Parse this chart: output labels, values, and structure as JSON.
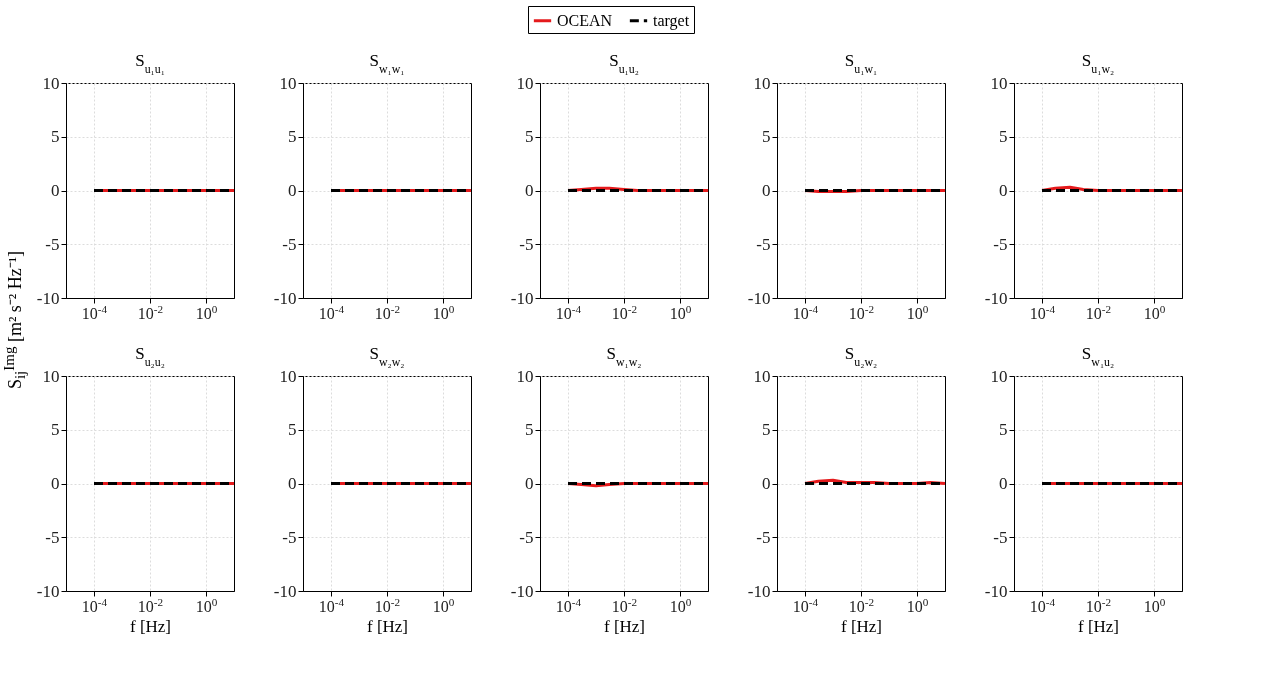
{
  "chart_data": [
    {
      "type": "line",
      "title": "S$_{u₁u₁}$",
      "ylabel": "S$_{ij}$$^{Img}$ [m² s⁻² Hz⁻¹]",
      "legend": "top",
      "log": "x",
      "grid": true,
      "xlim": [
        1e-05,
        10
      ],
      "ylim": [
        -10,
        10
      ],
      "xticks": [
        {
          "value": 0.0001,
          "label": "10$^{-4}$"
        },
        {
          "value": 0.01,
          "label": "10$^{-2}$"
        },
        {
          "value": 1,
          "label": "10$^{0}$"
        }
      ],
      "yticks": [
        -10,
        -5,
        0,
        5,
        10
      ],
      "x": [
        0.0001,
        0.0003,
        0.001,
        0.003,
        0.01,
        0.03,
        0.1,
        0.3,
        1,
        3,
        10
      ],
      "series": [
        {
          "name": "OCEAN",
          "color": "#e41a1c",
          "line_style": "solid",
          "values": [
            0,
            0,
            0,
            0,
            0,
            0,
            0,
            0,
            0,
            0,
            0
          ]
        },
        {
          "name": "target",
          "color": "#000000",
          "line_style": "dashed",
          "values": [
            0,
            0,
            0,
            0,
            0,
            0,
            0,
            0,
            0,
            0,
            0
          ]
        }
      ]
    },
    {
      "type": "line",
      "title": "S$_{w₁w₁}$",
      "log": "x",
      "grid": true,
      "xlim": [
        1e-05,
        10
      ],
      "ylim": [
        -10,
        10
      ],
      "xticks": [
        {
          "value": 0.0001,
          "label": "10$^{-4}$"
        },
        {
          "value": 0.01,
          "label": "10$^{-2}$"
        },
        {
          "value": 1,
          "label": "10$^{0}$"
        }
      ],
      "yticks": [
        -10,
        -5,
        0,
        5,
        10
      ],
      "x": [
        0.0001,
        0.0003,
        0.001,
        0.003,
        0.01,
        0.03,
        0.1,
        0.3,
        1,
        3,
        10
      ],
      "series": [
        {
          "name": "OCEAN",
          "color": "#e41a1c",
          "line_style": "solid",
          "values": [
            0,
            0,
            0,
            0,
            0,
            0,
            0,
            0,
            0,
            0,
            0
          ]
        },
        {
          "name": "target",
          "color": "#000000",
          "line_style": "dashed",
          "values": [
            0,
            0,
            0,
            0,
            0,
            0,
            0,
            0,
            0,
            0,
            0
          ]
        }
      ]
    },
    {
      "type": "line",
      "title": "S$_{u₁u₂}$",
      "log": "x",
      "grid": true,
      "xlim": [
        1e-05,
        10
      ],
      "ylim": [
        -10,
        10
      ],
      "xticks": [
        {
          "value": 0.0001,
          "label": "10$^{-4}$"
        },
        {
          "value": 0.01,
          "label": "10$^{-2}$"
        },
        {
          "value": 1,
          "label": "10$^{0}$"
        }
      ],
      "yticks": [
        -10,
        -5,
        0,
        5,
        10
      ],
      "x": [
        0.0001,
        0.0003,
        0.001,
        0.003,
        0.01,
        0.03,
        0.1,
        0.3,
        1,
        3,
        10
      ],
      "series": [
        {
          "name": "OCEAN",
          "color": "#e41a1c",
          "line_style": "solid",
          "values": [
            0,
            0.1,
            0.2,
            0.2,
            0.1,
            0,
            0,
            0,
            0,
            0,
            0
          ]
        },
        {
          "name": "target",
          "color": "#000000",
          "line_style": "dashed",
          "values": [
            0,
            0,
            0,
            0,
            0,
            0,
            0,
            0,
            0,
            0,
            0
          ]
        }
      ]
    },
    {
      "type": "line",
      "title": "S$_{u₁w₁}$",
      "log": "x",
      "grid": true,
      "xlim": [
        1e-05,
        10
      ],
      "ylim": [
        -10,
        10
      ],
      "xticks": [
        {
          "value": 0.0001,
          "label": "10$^{-4}$"
        },
        {
          "value": 0.01,
          "label": "10$^{-2}$"
        },
        {
          "value": 1,
          "label": "10$^{0}$"
        }
      ],
      "yticks": [
        -10,
        -5,
        0,
        5,
        10
      ],
      "x": [
        0.0001,
        0.0003,
        0.001,
        0.003,
        0.01,
        0.03,
        0.1,
        0.3,
        1,
        3,
        10
      ],
      "series": [
        {
          "name": "OCEAN",
          "color": "#e41a1c",
          "line_style": "solid",
          "values": [
            0,
            -0.1,
            -0.1,
            -0.1,
            0,
            0,
            0,
            0,
            0,
            0,
            0
          ]
        },
        {
          "name": "target",
          "color": "#000000",
          "line_style": "dashed",
          "values": [
            0,
            0,
            0,
            0,
            0,
            0,
            0,
            0,
            0,
            0,
            0
          ]
        }
      ]
    },
    {
      "type": "line",
      "title": "S$_{u₁w₂}$",
      "log": "x",
      "grid": true,
      "xlim": [
        1e-05,
        10
      ],
      "ylim": [
        -10,
        10
      ],
      "xticks": [
        {
          "value": 0.0001,
          "label": "10$^{-4}$"
        },
        {
          "value": 0.01,
          "label": "10$^{-2}$"
        },
        {
          "value": 1,
          "label": "10$^{0}$"
        }
      ],
      "yticks": [
        -10,
        -5,
        0,
        5,
        10
      ],
      "x": [
        0.0001,
        0.0003,
        0.001,
        0.003,
        0.01,
        0.03,
        0.1,
        0.3,
        1,
        3,
        10
      ],
      "series": [
        {
          "name": "OCEAN",
          "color": "#e41a1c",
          "line_style": "solid",
          "values": [
            0,
            0.2,
            0.3,
            0.1,
            0,
            0,
            0,
            0,
            0,
            0,
            0
          ]
        },
        {
          "name": "target",
          "color": "#000000",
          "line_style": "dashed",
          "values": [
            0,
            0,
            0,
            0,
            0,
            0,
            0,
            0,
            0,
            0,
            0
          ]
        }
      ]
    },
    {
      "type": "line",
      "title": "S$_{u₂u₂}$",
      "xlabel": "f [Hz]",
      "log": "x",
      "grid": true,
      "xlim": [
        1e-05,
        10
      ],
      "ylim": [
        -10,
        10
      ],
      "xticks": [
        {
          "value": 0.0001,
          "label": "10$^{-4}$"
        },
        {
          "value": 0.01,
          "label": "10$^{-2}$"
        },
        {
          "value": 1,
          "label": "10$^{0}$"
        }
      ],
      "yticks": [
        -10,
        -5,
        0,
        5,
        10
      ],
      "x": [
        0.0001,
        0.0003,
        0.001,
        0.003,
        0.01,
        0.03,
        0.1,
        0.3,
        1,
        3,
        10
      ],
      "series": [
        {
          "name": "OCEAN",
          "color": "#e41a1c",
          "line_style": "solid",
          "values": [
            0,
            0,
            0,
            0,
            0,
            0,
            0,
            0,
            0,
            0,
            0
          ]
        },
        {
          "name": "target",
          "color": "#000000",
          "line_style": "dashed",
          "values": [
            0,
            0,
            0,
            0,
            0,
            0,
            0,
            0,
            0,
            0,
            0
          ]
        }
      ]
    },
    {
      "type": "line",
      "title": "S$_{w₂w₂}$",
      "xlabel": "f [Hz]",
      "log": "x",
      "grid": true,
      "xlim": [
        1e-05,
        10
      ],
      "ylim": [
        -10,
        10
      ],
      "xticks": [
        {
          "value": 0.0001,
          "label": "10$^{-4}$"
        },
        {
          "value": 0.01,
          "label": "10$^{-2}$"
        },
        {
          "value": 1,
          "label": "10$^{0}$"
        }
      ],
      "yticks": [
        -10,
        -5,
        0,
        5,
        10
      ],
      "x": [
        0.0001,
        0.0003,
        0.001,
        0.003,
        0.01,
        0.03,
        0.1,
        0.3,
        1,
        3,
        10
      ],
      "series": [
        {
          "name": "OCEAN",
          "color": "#e41a1c",
          "line_style": "solid",
          "values": [
            0,
            0,
            0,
            0,
            0,
            0,
            0,
            0,
            0,
            0,
            0
          ]
        },
        {
          "name": "target",
          "color": "#000000",
          "line_style": "dashed",
          "values": [
            0,
            0,
            0,
            0,
            0,
            0,
            0,
            0,
            0,
            0,
            0
          ]
        }
      ]
    },
    {
      "type": "line",
      "title": "S$_{w₁w₂}$",
      "xlabel": "f [Hz]",
      "log": "x",
      "grid": true,
      "xlim": [
        1e-05,
        10
      ],
      "ylim": [
        -10,
        10
      ],
      "xticks": [
        {
          "value": 0.0001,
          "label": "10$^{-4}$"
        },
        {
          "value": 0.01,
          "label": "10$^{-2}$"
        },
        {
          "value": 1,
          "label": "10$^{0}$"
        }
      ],
      "yticks": [
        -10,
        -5,
        0,
        5,
        10
      ],
      "x": [
        0.0001,
        0.0003,
        0.001,
        0.003,
        0.01,
        0.03,
        0.1,
        0.3,
        1,
        3,
        10
      ],
      "series": [
        {
          "name": "OCEAN",
          "color": "#e41a1c",
          "line_style": "solid",
          "values": [
            0,
            -0.1,
            -0.2,
            -0.1,
            0,
            0,
            0,
            0,
            0,
            0,
            0
          ]
        },
        {
          "name": "target",
          "color": "#000000",
          "line_style": "dashed",
          "values": [
            0,
            0,
            0,
            0,
            0,
            0,
            0,
            0,
            0,
            0,
            0
          ]
        }
      ]
    },
    {
      "type": "line",
      "title": "S$_{u₂w₂}$",
      "xlabel": "f [Hz]",
      "log": "x",
      "grid": true,
      "xlim": [
        1e-05,
        10
      ],
      "ylim": [
        -10,
        10
      ],
      "xticks": [
        {
          "value": 0.0001,
          "label": "10$^{-4}$"
        },
        {
          "value": 0.01,
          "label": "10$^{-2}$"
        },
        {
          "value": 1,
          "label": "10$^{0}$"
        }
      ],
      "yticks": [
        -10,
        -5,
        0,
        5,
        10
      ],
      "x": [
        0.0001,
        0.0003,
        0.001,
        0.003,
        0.01,
        0.03,
        0.1,
        0.3,
        1,
        3,
        10
      ],
      "series": [
        {
          "name": "OCEAN",
          "color": "#e41a1c",
          "line_style": "solid",
          "values": [
            0,
            0.2,
            0.3,
            0.1,
            0.1,
            0.1,
            0,
            0,
            0,
            0.1,
            0
          ]
        },
        {
          "name": "target",
          "color": "#000000",
          "line_style": "dashed",
          "values": [
            0,
            0,
            0,
            0,
            0,
            0,
            0,
            0,
            0,
            0,
            0
          ]
        }
      ]
    },
    {
      "type": "line",
      "title": "S$_{w₁u₂}$",
      "xlabel": "f [Hz]",
      "log": "x",
      "grid": true,
      "xlim": [
        1e-05,
        10
      ],
      "ylim": [
        -10,
        10
      ],
      "xticks": [
        {
          "value": 0.0001,
          "label": "10$^{-4}$"
        },
        {
          "value": 0.01,
          "label": "10$^{-2}$"
        },
        {
          "value": 1,
          "label": "10$^{0}$"
        }
      ],
      "yticks": [
        -10,
        -5,
        0,
        5,
        10
      ],
      "x": [
        0.0001,
        0.0003,
        0.001,
        0.003,
        0.01,
        0.03,
        0.1,
        0.3,
        1,
        3,
        10
      ],
      "series": [
        {
          "name": "OCEAN",
          "color": "#e41a1c",
          "line_style": "solid",
          "values": [
            0,
            0,
            0,
            0,
            0,
            0,
            0,
            0,
            0,
            0,
            0
          ]
        },
        {
          "name": "target",
          "color": "#000000",
          "line_style": "dashed",
          "values": [
            0,
            0,
            0,
            0,
            0,
            0,
            0,
            0,
            0,
            0,
            0
          ]
        }
      ]
    }
  ]
}
